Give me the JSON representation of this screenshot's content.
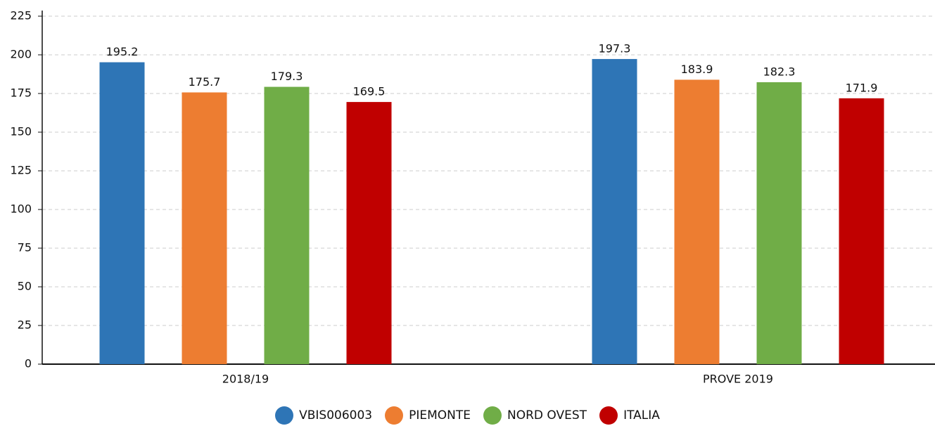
{
  "chart_data": {
    "type": "bar",
    "categories": [
      "2018/19",
      "PROVE 2019"
    ],
    "series": [
      {
        "name": "VBIS006003",
        "color": "#2e75b6",
        "values": [
          195.2,
          197.3
        ]
      },
      {
        "name": "PIEMONTE",
        "color": "#ed7d31",
        "values": [
          175.7,
          183.9
        ]
      },
      {
        "name": "NORD OVEST",
        "color": "#70ad47",
        "values": [
          179.3,
          182.3
        ]
      },
      {
        "name": "ITALIA",
        "color": "#c00000",
        "values": [
          169.5,
          171.9
        ]
      }
    ],
    "ylim": [
      0,
      225
    ],
    "yticks": [
      0,
      25,
      50,
      75,
      100,
      125,
      150,
      175,
      200,
      225
    ],
    "grid": true
  }
}
